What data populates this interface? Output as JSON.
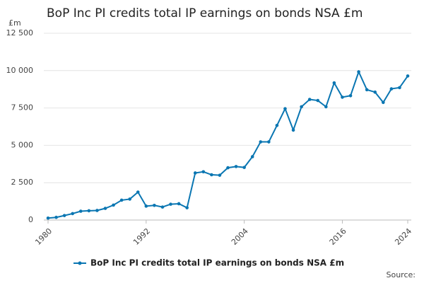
{
  "chart_data": {
    "type": "line",
    "title": "BoP Inc PI credits total IP earnings on bonds NSA £m",
    "y_unit": "£m",
    "source": "Source:",
    "x": [
      1980,
      1981,
      1982,
      1983,
      1984,
      1985,
      1986,
      1987,
      1988,
      1989,
      1990,
      1991,
      1992,
      1993,
      1994,
      1995,
      1996,
      1997,
      1998,
      1999,
      2000,
      2001,
      2002,
      2003,
      2004,
      2005,
      2006,
      2007,
      2008,
      2009,
      2010,
      2011,
      2012,
      2013,
      2014,
      2015,
      2016,
      2017,
      2018,
      2019,
      2020,
      2021,
      2022,
      2023,
      2024
    ],
    "series": [
      {
        "name": "BoP Inc PI credits total IP earnings on bonds NSA £m",
        "color": "#0a76b2",
        "values": [
          130,
          180,
          300,
          430,
          590,
          620,
          640,
          780,
          1000,
          1330,
          1400,
          1870,
          930,
          980,
          870,
          1060,
          1090,
          820,
          3150,
          3230,
          3030,
          3000,
          3500,
          3580,
          3520,
          4240,
          5230,
          5230,
          6330,
          7450,
          6020,
          7580,
          8070,
          8000,
          7580,
          9180,
          8220,
          8320,
          9920,
          8720,
          8560,
          7870,
          8780,
          8860,
          9640
        ]
      }
    ],
    "xlim": [
      1980,
      2024
    ],
    "xticks": [
      1980,
      1992,
      2004,
      2016,
      2024
    ],
    "ylim": [
      0,
      12500
    ],
    "yticks": [
      0,
      {
        "value": 2500,
        "label": "2 500"
      },
      {
        "value": 5000,
        "label": "5 000"
      },
      {
        "value": 7500,
        "label": "7 500"
      },
      {
        "value": 10000,
        "label": "10 000"
      },
      {
        "value": 12500,
        "label": "12 500"
      }
    ],
    "grid": true
  }
}
